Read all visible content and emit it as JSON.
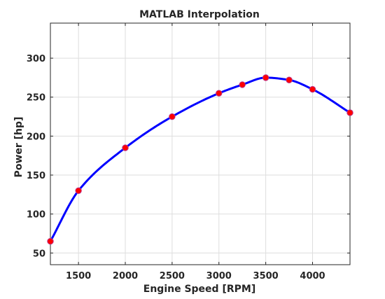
{
  "chart_data": {
    "type": "line",
    "title": "MATLAB Interpolation",
    "xlabel": "Engine Speed [RPM]",
    "ylabel": "Power [hp]",
    "xlim": [
      1200,
      4400
    ],
    "ylim": [
      35,
      345
    ],
    "xticks": [
      1500,
      2000,
      2500,
      3000,
      3500,
      4000
    ],
    "yticks": [
      50,
      100,
      150,
      200,
      250,
      300
    ],
    "grid": true,
    "series": [
      {
        "kind": "interpolated-line",
        "color": "#0000ff",
        "x": [
          1200,
          1500,
          2000,
          2500,
          3000,
          3250,
          3500,
          3750,
          4000,
          4400
        ],
        "y": [
          65,
          130,
          185,
          225,
          255,
          266,
          275,
          272,
          260,
          230
        ]
      },
      {
        "kind": "data-points",
        "marker_face": "#ff0000",
        "marker_edge": "#bb3388",
        "x": [
          1200,
          1500,
          2000,
          2500,
          3000,
          3250,
          3500,
          3750,
          4000,
          4400
        ],
        "y": [
          65,
          130,
          185,
          225,
          255,
          266,
          275,
          272,
          260,
          230
        ]
      }
    ]
  }
}
